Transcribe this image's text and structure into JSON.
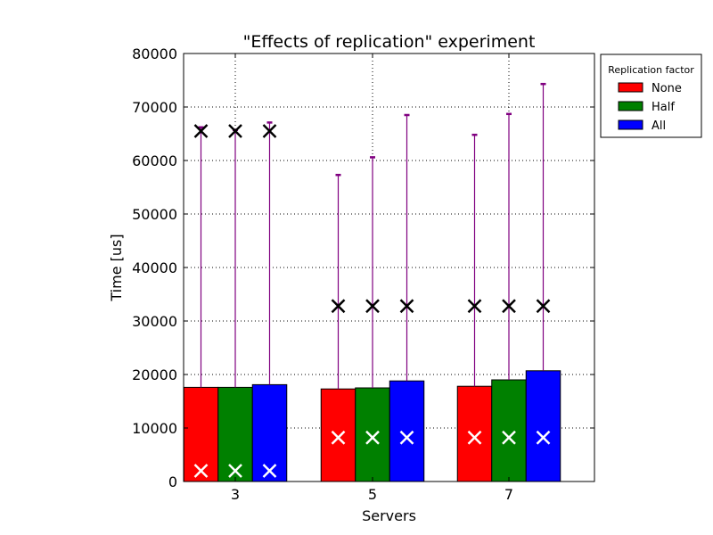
{
  "chart_data": {
    "type": "bar",
    "title": "\"Effects of replication\" experiment",
    "xlabel": "Servers",
    "ylabel": "Time [us]",
    "categories": [
      "3",
      "5",
      "7"
    ],
    "ylim": [
      0,
      80000
    ],
    "yticks": [
      0,
      10000,
      20000,
      30000,
      40000,
      50000,
      60000,
      70000,
      80000
    ],
    "ytick_labels": [
      "0",
      "10000",
      "20000",
      "30000",
      "40000",
      "50000",
      "60000",
      "70000",
      "80000"
    ],
    "grid": true,
    "legend": {
      "title": "Replication factor",
      "placement": "outside-top-right"
    },
    "series": [
      {
        "name": "None",
        "color": "#ff0000",
        "values": [
          17600,
          17300,
          17800
        ],
        "error_max": [
          66200,
          57300,
          64800
        ],
        "max_marker": [
          65500,
          32800,
          32800
        ],
        "min_marker": [
          2000,
          8200,
          8200
        ]
      },
      {
        "name": "Half",
        "color": "#008000",
        "values": [
          17600,
          17500,
          19000
        ],
        "error_max": [
          65700,
          60600,
          68700
        ],
        "max_marker": [
          65500,
          32800,
          32800
        ],
        "min_marker": [
          2000,
          8200,
          8200
        ]
      },
      {
        "name": "All",
        "color": "#0000ff",
        "values": [
          18100,
          18800,
          20700
        ],
        "error_max": [
          67100,
          68500,
          74300
        ],
        "max_marker": [
          65500,
          32800,
          32800
        ],
        "min_marker": [
          2000,
          8200,
          8200
        ]
      }
    ],
    "error_bar_color": "#800080",
    "max_marker_color": "#000000",
    "min_marker_color": "#ffffff"
  }
}
